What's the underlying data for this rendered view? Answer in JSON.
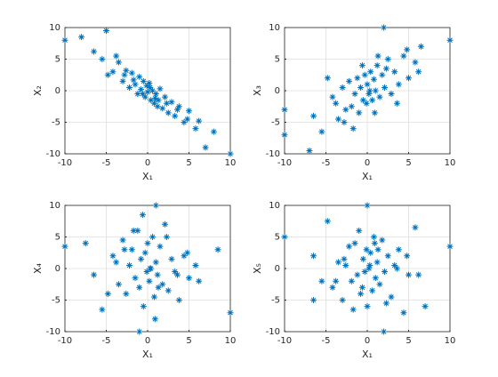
{
  "chart_data": [
    {
      "type": "scatter",
      "marker": "*",
      "color": "#0072bd",
      "grid": true,
      "xlabel": "X₁",
      "ylabel": "X₂",
      "xlim": [
        -10,
        10
      ],
      "ylim": [
        -10,
        10
      ],
      "xticks": [
        -10,
        -5,
        0,
        5,
        10
      ],
      "yticks": [
        -10,
        -5,
        0,
        5,
        10
      ],
      "x": [
        -10,
        -8,
        -5,
        10,
        8,
        7,
        -6.5,
        -4.2,
        -3.5,
        -3,
        -2.6,
        -2.2,
        -1.9,
        -1.5,
        -1.2,
        -1,
        -0.8,
        -0.5,
        -0.3,
        -0.1,
        0,
        0.2,
        0.4,
        0.6,
        0.8,
        1,
        1.2,
        1.5,
        1.8,
        2.1,
        2.5,
        2.9,
        3.3,
        3.8,
        4.4,
        5,
        5.8,
        -5.5,
        -2.8,
        -0.6,
        0.9,
        2.3,
        3.6,
        4.8,
        6.2,
        -4.8,
        -1.7,
        1.3,
        -3.8,
        0.3
      ],
      "y": [
        8,
        8.5,
        9.5,
        -10,
        -6.5,
        -9,
        6.2,
        3,
        4.5,
        1.5,
        3.2,
        0.5,
        2.8,
        1,
        -0.5,
        2.2,
        0.2,
        1.5,
        -1,
        0.8,
        -0.2,
        1.2,
        -1.5,
        0,
        -2,
        -0.5,
        -2.5,
        0.3,
        -2.8,
        -1,
        -3.5,
        -1.8,
        -4,
        -2.5,
        -5,
        -3.2,
        -6,
        5,
        2.5,
        -0.5,
        -1.2,
        -2,
        -3,
        -4.5,
        -4.8,
        2.5,
        1.7,
        -1.5,
        5.5,
        0.5
      ]
    },
    {
      "type": "scatter",
      "marker": "*",
      "color": "#0072bd",
      "grid": true,
      "xlabel": "X₁",
      "ylabel": "X₃",
      "xlim": [
        -10,
        10
      ],
      "ylim": [
        -10,
        10
      ],
      "xticks": [
        -10,
        -5,
        0,
        5,
        10
      ],
      "yticks": [
        -10,
        -5,
        0,
        5,
        10
      ],
      "x": [
        -10,
        -10,
        10,
        2,
        -7,
        6.5,
        -6.5,
        -4.2,
        -3.5,
        -3,
        -2.6,
        -2.2,
        -1.9,
        -1.5,
        -1.2,
        -1,
        -0.8,
        -0.5,
        -0.3,
        -0.1,
        0,
        0.2,
        0.4,
        0.6,
        0.8,
        1,
        1.2,
        1.5,
        1.8,
        2.1,
        2.5,
        2.9,
        3.3,
        3.8,
        4.4,
        5,
        5.8,
        -5.5,
        -2.8,
        -0.6,
        0.9,
        2.3,
        3.6,
        4.8,
        6.2,
        -4.8,
        -1.7,
        1.3,
        -3.8,
        0.3
      ],
      "y": [
        -3,
        -7,
        8,
        10,
        -9.5,
        7,
        -4,
        -1,
        -4.5,
        0.5,
        -3,
        1.5,
        -2.5,
        -0.5,
        2,
        -3.5,
        0.5,
        -1.5,
        2.5,
        -2,
        1,
        -0.5,
        3,
        -1.5,
        1.8,
        0,
        4,
        -1,
        2.5,
        0.5,
        5,
        -0.5,
        3,
        1,
        5.5,
        2,
        4.5,
        -6.5,
        -5,
        4,
        -3.5,
        3.5,
        -2,
        6.5,
        3,
        2,
        -6,
        5.5,
        -2,
        0
      ]
    },
    {
      "type": "scatter",
      "marker": "*",
      "color": "#0072bd",
      "grid": true,
      "xlabel": "X₁",
      "ylabel": "X₄",
      "xlim": [
        -10,
        10
      ],
      "ylim": [
        -10,
        10
      ],
      "xticks": [
        -10,
        -5,
        0,
        5,
        10
      ],
      "yticks": [
        -10,
        -5,
        0,
        5,
        10
      ],
      "x": [
        -10,
        1,
        10,
        -1,
        -7.5,
        8.5,
        -6.5,
        -4.2,
        -3.5,
        -3,
        -2.6,
        -2.2,
        -1.9,
        -1.5,
        -1.2,
        -1,
        -0.8,
        -0.5,
        -0.3,
        -0.1,
        0,
        0.2,
        0.4,
        0.6,
        0.8,
        1,
        1.2,
        1.5,
        1.8,
        2.1,
        2.5,
        2.9,
        3.3,
        3.8,
        4.4,
        5,
        5.8,
        -5.5,
        -2.8,
        -0.6,
        0.9,
        2.3,
        3.6,
        4.8,
        6.2,
        -4.8,
        -1.7,
        1.3,
        -3.8,
        0.3
      ],
      "y": [
        3.5,
        10,
        -7,
        -10,
        4,
        3,
        -1,
        2,
        -2.5,
        4.5,
        -4,
        0.5,
        3,
        -1.5,
        6,
        -3,
        1.5,
        -6,
        2.5,
        -0.5,
        4,
        -2,
        0,
        5,
        -4.5,
        1,
        -1,
        3.5,
        -2.5,
        7,
        -3.5,
        1.5,
        -0.5,
        -5,
        2,
        -1.5,
        0.5,
        -6.5,
        3,
        8.5,
        -8,
        5,
        -1,
        2.5,
        -2,
        -4,
        6,
        -3,
        1,
        0
      ]
    },
    {
      "type": "scatter",
      "marker": "*",
      "color": "#0072bd",
      "grid": true,
      "xlabel": "X₁",
      "ylabel": "X₅",
      "xlim": [
        -10,
        10
      ],
      "ylim": [
        -10,
        10
      ],
      "xticks": [
        -10,
        -5,
        0,
        5,
        10
      ],
      "yticks": [
        -10,
        -5,
        0,
        5,
        10
      ],
      "x": [
        -10,
        10,
        0,
        2,
        -6.5,
        7,
        -6.5,
        -4.2,
        -3.5,
        -3,
        -2.6,
        -2.2,
        -1.9,
        -1.5,
        -1.2,
        -1,
        -0.8,
        -0.5,
        -0.3,
        -0.1,
        0,
        0.2,
        0.4,
        0.6,
        0.8,
        1,
        1.2,
        1.5,
        1.8,
        2.1,
        2.5,
        2.9,
        3.3,
        3.8,
        4.4,
        5,
        5.8,
        -5.5,
        -2.8,
        -0.6,
        0.9,
        2.3,
        3.6,
        4.8,
        6.2,
        -4.8,
        -1.7,
        1.3,
        -3.8,
        0.3
      ],
      "y": [
        5,
        3.5,
        10,
        -10,
        -5,
        -6,
        2,
        -3,
        1,
        -5,
        0.5,
        3.5,
        -2,
        4,
        -1,
        6,
        -4,
        1.5,
        -0.5,
        3,
        -6,
        0,
        2.5,
        -3.5,
        5,
        -1.5,
        1,
        -2.5,
        4.5,
        -0.5,
        2,
        -4.5,
        0.5,
        3,
        -7,
        -1,
        6.5,
        -2,
        1.5,
        -3,
        4,
        -5.5,
        0,
        2,
        -1,
        7.5,
        -6.5,
        3,
        -2,
        0.5
      ]
    }
  ]
}
